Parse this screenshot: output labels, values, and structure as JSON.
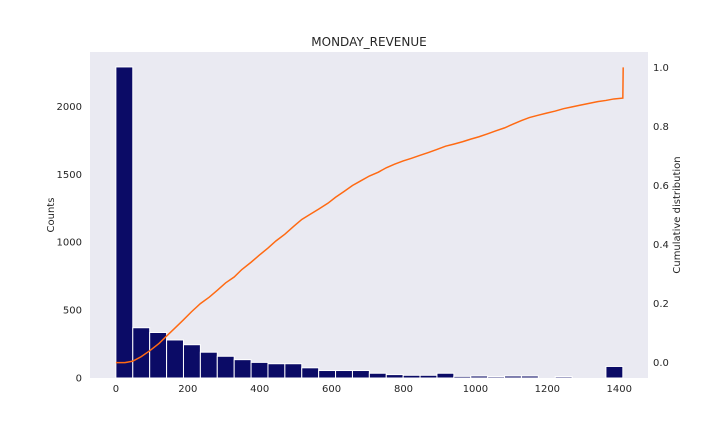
{
  "chart_data": {
    "type": "bar",
    "title": "MONDAY_REVENUE",
    "xlabel": "",
    "ylabel": "Counts",
    "y2label": "Cumulative distribution",
    "bin_width": 47,
    "bins_start": [
      0,
      47,
      94,
      141,
      188,
      235,
      282,
      329,
      376,
      423,
      470,
      517,
      564,
      611,
      658,
      705,
      752,
      799,
      846,
      893,
      940,
      987,
      1034,
      1081,
      1128,
      1175,
      1222,
      1269,
      1316,
      1363
    ],
    "counts": [
      2290,
      370,
      335,
      280,
      245,
      190,
      160,
      135,
      115,
      105,
      105,
      75,
      55,
      55,
      55,
      35,
      25,
      20,
      20,
      35,
      12,
      15,
      10,
      15,
      15,
      0,
      10,
      0,
      0,
      85
    ],
    "cumulative": {
      "x": [
        0,
        25,
        47,
        70,
        94,
        120,
        141,
        165,
        188,
        210,
        235,
        260,
        282,
        305,
        329,
        350,
        376,
        400,
        423,
        445,
        470,
        495,
        517,
        540,
        564,
        590,
        611,
        635,
        658,
        680,
        705,
        730,
        752,
        775,
        799,
        822,
        846,
        870,
        893,
        917,
        940,
        964,
        987,
        1010,
        1034,
        1057,
        1081,
        1105,
        1128,
        1150,
        1175,
        1198,
        1222,
        1245,
        1269,
        1292,
        1316,
        1340,
        1363,
        1385,
        1410,
        1411
      ],
      "y": [
        0.0,
        0.0,
        0.005,
        0.02,
        0.04,
        0.065,
        0.09,
        0.118,
        0.145,
        0.172,
        0.2,
        0.222,
        0.245,
        0.27,
        0.29,
        0.315,
        0.34,
        0.365,
        0.388,
        0.412,
        0.435,
        0.462,
        0.485,
        0.502,
        0.52,
        0.54,
        0.56,
        0.58,
        0.6,
        0.615,
        0.632,
        0.645,
        0.66,
        0.672,
        0.683,
        0.692,
        0.702,
        0.712,
        0.722,
        0.733,
        0.74,
        0.748,
        0.757,
        0.765,
        0.775,
        0.785,
        0.795,
        0.808,
        0.82,
        0.83,
        0.838,
        0.845,
        0.852,
        0.86,
        0.866,
        0.872,
        0.878,
        0.884,
        0.888,
        0.893,
        0.896,
        1.0
      ]
    },
    "xlim": [
      -72,
      1480
    ],
    "ylim": [
      0,
      2400
    ],
    "y2lim": [
      -0.052,
      1.052
    ],
    "xticks": [
      0,
      200,
      400,
      600,
      800,
      1000,
      1200,
      1400
    ],
    "yticks": [
      0,
      500,
      1000,
      1500,
      2000
    ],
    "y2ticks": [
      0.0,
      0.2,
      0.4,
      0.6,
      0.8,
      1.0
    ],
    "colors": {
      "bar_fill": "#0b0b66",
      "bar_edge": "#ffffff",
      "line": "#ff6a13",
      "plot_bg": "#eaeaf2"
    }
  }
}
